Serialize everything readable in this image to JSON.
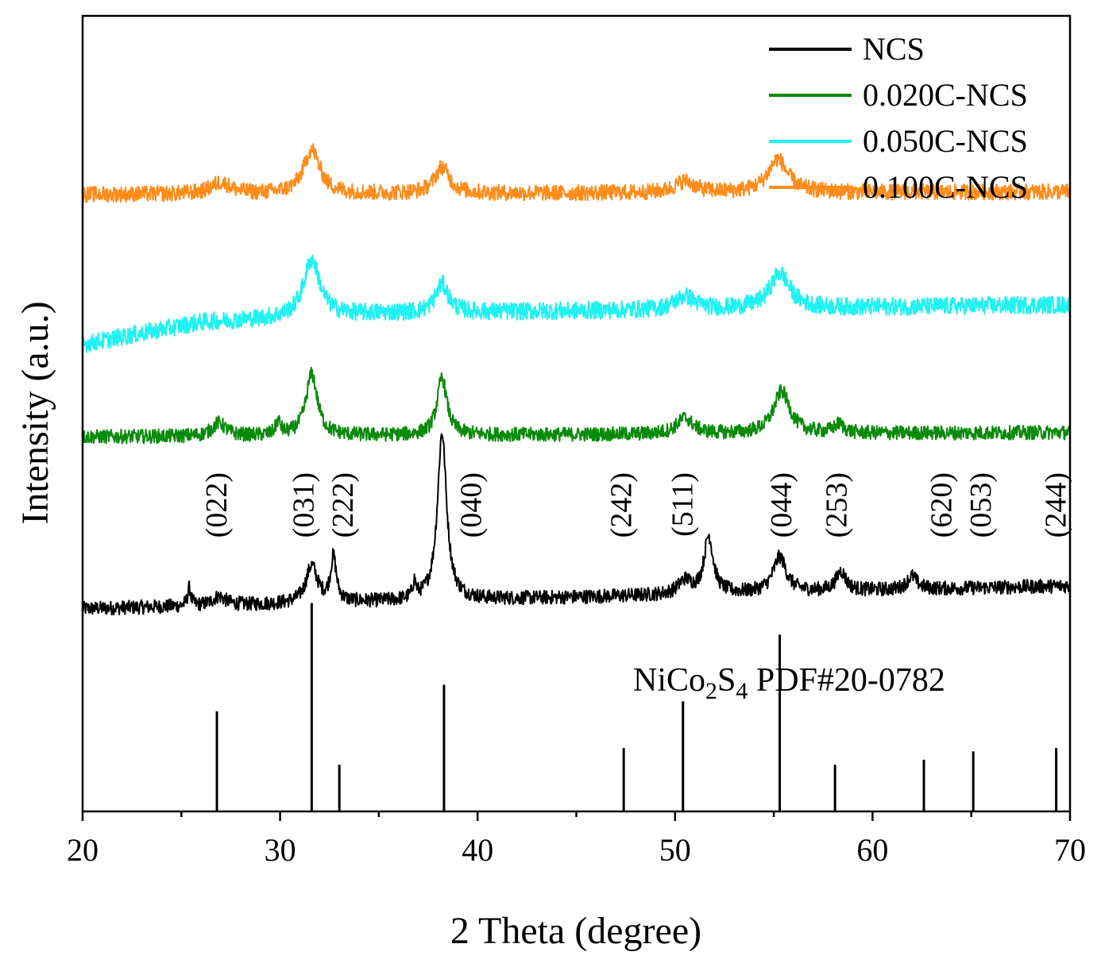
{
  "chart_data": {
    "type": "line",
    "title": "",
    "xlabel": "2 Theta (degree)",
    "ylabel": "Intensity (a.u.)",
    "xlim": [
      20,
      70
    ],
    "x_ticks": [
      20,
      30,
      40,
      50,
      60,
      70
    ],
    "x_tick_labels": [
      "20",
      "30",
      "40",
      "50",
      "60",
      "70"
    ],
    "y_ticks": [],
    "grid": false,
    "legend_position": "top-right",
    "series": [
      {
        "name": "NCS",
        "color": "#000000",
        "offset": 0,
        "noise": 0.8,
        "baseline": [
          [
            20,
            3.0
          ],
          [
            70,
            5.6
          ]
        ],
        "peaks": [
          {
            "x": 25.4,
            "h": 2.0,
            "w": 0.1
          },
          {
            "x": 26.9,
            "h": 1.0,
            "w": 0.4
          },
          {
            "x": 31.6,
            "h": 4.2,
            "w": 0.35
          },
          {
            "x": 32.7,
            "h": 5.0,
            "w": 0.18
          },
          {
            "x": 36.8,
            "h": 1.8,
            "w": 0.1
          },
          {
            "x": 38.2,
            "h": 19.0,
            "w": 0.28
          },
          {
            "x": 50.5,
            "h": 1.5,
            "w": 0.4
          },
          {
            "x": 51.7,
            "h": 6.5,
            "w": 0.28
          },
          {
            "x": 55.3,
            "h": 4.0,
            "w": 0.4
          },
          {
            "x": 58.4,
            "h": 2.2,
            "w": 0.3
          },
          {
            "x": 62.0,
            "h": 1.5,
            "w": 0.3
          }
        ]
      },
      {
        "name": "0.020C-NCS",
        "color": "#0a8a0a",
        "offset": 22,
        "noise": 0.8,
        "baseline": [
          [
            20,
            0.5
          ],
          [
            70,
            1.0
          ]
        ],
        "peaks": [
          {
            "x": 26.9,
            "h": 1.5,
            "w": 0.4
          },
          {
            "x": 29.9,
            "h": 1.5,
            "w": 0.15
          },
          {
            "x": 31.6,
            "h": 7.0,
            "w": 0.35
          },
          {
            "x": 38.2,
            "h": 6.5,
            "w": 0.3
          },
          {
            "x": 50.5,
            "h": 1.8,
            "w": 0.5
          },
          {
            "x": 55.4,
            "h": 4.8,
            "w": 0.5
          },
          {
            "x": 58.3,
            "h": 1.0,
            "w": 0.3
          }
        ]
      },
      {
        "name": "0.050C-NCS",
        "color": "#1ff2f2",
        "offset": 33,
        "noise": 1.0,
        "baseline": [
          [
            20,
            0.0
          ],
          [
            26,
            2.5
          ],
          [
            35,
            3.5
          ],
          [
            70,
            4.5
          ]
        ],
        "peaks": [
          {
            "x": 31.6,
            "h": 6.5,
            "w": 0.5
          },
          {
            "x": 38.2,
            "h": 3.2,
            "w": 0.4
          },
          {
            "x": 50.5,
            "h": 1.5,
            "w": 0.6
          },
          {
            "x": 55.3,
            "h": 4.0,
            "w": 0.6
          }
        ]
      },
      {
        "name": "0.100C-NCS",
        "color": "#ff8c1a",
        "offset": 50,
        "noise": 0.9,
        "baseline": [
          [
            20,
            0.0
          ],
          [
            70,
            0.3
          ]
        ],
        "peaks": [
          {
            "x": 27.0,
            "h": 1.3,
            "w": 0.6
          },
          {
            "x": 31.6,
            "h": 5.0,
            "w": 0.5
          },
          {
            "x": 38.2,
            "h": 3.0,
            "w": 0.45
          },
          {
            "x": 50.5,
            "h": 1.3,
            "w": 0.6
          },
          {
            "x": 55.2,
            "h": 3.8,
            "w": 0.6
          }
        ]
      }
    ],
    "reference": {
      "label_main": "NiCo",
      "label_sub1": "2",
      "label_mid": "S",
      "label_sub2": "4",
      "label_tail": " PDF#20-0782",
      "color": "#000000",
      "lines": [
        {
          "x": 26.8,
          "h": 6.0
        },
        {
          "x": 31.6,
          "h": 12.5
        },
        {
          "x": 33.0,
          "h": 2.8
        },
        {
          "x": 38.3,
          "h": 7.6
        },
        {
          "x": 47.4,
          "h": 3.8
        },
        {
          "x": 50.4,
          "h": 6.6
        },
        {
          "x": 55.3,
          "h": 10.6
        },
        {
          "x": 58.1,
          "h": 2.8
        },
        {
          "x": 62.6,
          "h": 3.1
        },
        {
          "x": 65.1,
          "h": 3.6
        },
        {
          "x": 69.3,
          "h": 3.8
        }
      ]
    },
    "miller_indices": [
      {
        "label": "(022)",
        "x": 26.8
      },
      {
        "label": "(031)",
        "x": 31.2
      },
      {
        "label": "(222)",
        "x": 33.2
      },
      {
        "label": "(040)",
        "x": 39.7
      },
      {
        "label": "(242)",
        "x": 47.3
      },
      {
        "label": "(511)",
        "x": 50.4
      },
      {
        "label": "(044)",
        "x": 55.4
      },
      {
        "label": "(253)",
        "x": 58.2
      },
      {
        "label": "(620)",
        "x": 63.5
      },
      {
        "label": "(053)",
        "x": 65.5
      },
      {
        "label": "(244)",
        "x": 69.3
      }
    ]
  }
}
